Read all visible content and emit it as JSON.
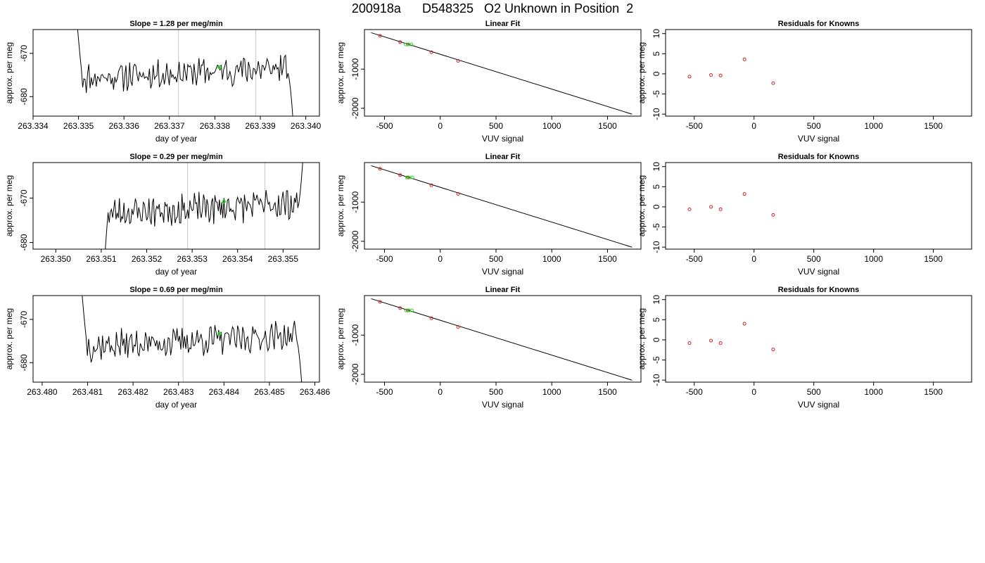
{
  "figure_title": "200918a      D548325   O2 Unknown in Position  2",
  "colors": {
    "trace": "#000000",
    "unknown_point": "#22dd22",
    "known_point": "#cc2222",
    "marker_line": "#c8c8c8",
    "axis": "#000000"
  },
  "chart_data": [
    {
      "panel": "r1-time",
      "type": "line",
      "title": "Slope =  1.28  per meg/min",
      "xlabel": "day of year",
      "ylabel": "approx. per meg",
      "xlim": [
        263.334,
        263.3403
      ],
      "ylim": [
        -684.5,
        -664.5
      ],
      "xticks": [
        263.334,
        263.335,
        263.336,
        263.337,
        263.338,
        263.339,
        263.34
      ],
      "xtick_labels": [
        "263.334",
        "263.335",
        "263.336",
        "263.337",
        "263.338",
        "263.339",
        "263.340"
      ],
      "yticks": [
        -670,
        -680
      ],
      "ytick_labels": [
        "-670",
        "-680"
      ],
      "vlines": [
        263.3372,
        263.3389
      ],
      "trace": {
        "x_start": 263.3349,
        "x_end": 263.3398,
        "base": -674.5,
        "offset": 1.3,
        "start_top": -650,
        "end_bottom": -700,
        "seed": 11
      },
      "unknown_point": {
        "x": 263.3381,
        "y": -673.2
      }
    },
    {
      "panel": "r1-fit",
      "type": "scatter",
      "title": "Linear Fit",
      "xlabel": "VUV signal",
      "ylabel": "approx. per meg",
      "xlim": [
        -680,
        1800
      ],
      "ylim": [
        -2200,
        10
      ],
      "xticks": [
        -500,
        0,
        500,
        1000,
        1500
      ],
      "xtick_labels": [
        "-500",
        "0",
        "500",
        "1000",
        "1500"
      ],
      "yticks": [
        -1000,
        -2000
      ],
      "ytick_labels": [
        "-1000",
        "-2000"
      ],
      "line": {
        "x": [
          -620,
          1720
        ],
        "y": [
          -70,
          -2150
        ]
      },
      "knowns": {
        "x": [
          -540,
          -360,
          -290,
          -80,
          160
        ],
        "y": [
          -150,
          -310,
          -370,
          -570,
          -790
        ]
      },
      "unknown_point": {
        "x": -285,
        "y": -370
      }
    },
    {
      "panel": "r1-res",
      "type": "scatter",
      "title": "Residuals for Knowns",
      "xlabel": "VUV signal",
      "ylabel": "approx. per meg",
      "xlim": [
        -740,
        1820
      ],
      "ylim": [
        -10.5,
        11
      ],
      "xticks": [
        -500,
        0,
        500,
        1000,
        1500
      ],
      "xtick_labels": [
        "-500",
        "0",
        "500",
        "1000",
        "1500"
      ],
      "yticks": [
        10,
        5,
        0,
        -5,
        -10
      ],
      "ytick_labels": [
        "10",
        "5",
        "0",
        "-5",
        "-10"
      ],
      "knowns": {
        "x": [
          -540,
          -360,
          -280,
          -80,
          160
        ],
        "y": [
          -0.7,
          -0.3,
          -0.4,
          3.6,
          -2.3
        ]
      }
    },
    {
      "panel": "r2-time",
      "type": "line",
      "title": "Slope =  0.29  per meg/min",
      "xlabel": "day of year",
      "ylabel": "approx. per meg",
      "xlim": [
        263.3495,
        263.3558
      ],
      "ylim": [
        -681.5,
        -662
      ],
      "xticks": [
        263.35,
        263.351,
        263.352,
        263.353,
        263.354,
        263.355
      ],
      "xtick_labels": [
        "263.350",
        "263.351",
        "263.352",
        "263.353",
        "263.354",
        "263.355"
      ],
      "yticks": [
        -670,
        -680
      ],
      "ytick_labels": [
        "-670",
        "-680"
      ],
      "vlines": [
        263.3529,
        263.3546
      ],
      "trace": {
        "x_start": 263.351,
        "x_end": 263.3555,
        "base": -672.3,
        "offset": 1.2,
        "start_top": -700,
        "end_bottom": -650,
        "seed": 23
      },
      "unknown_point": {
        "x": 263.3537,
        "y": -670.8
      }
    },
    {
      "panel": "r2-fit",
      "type": "scatter",
      "title": "Linear Fit",
      "xlabel": "VUV signal",
      "ylabel": "approx. per meg",
      "xlim": [
        -680,
        1800
      ],
      "ylim": [
        -2200,
        10
      ],
      "xticks": [
        -500,
        0,
        500,
        1000,
        1500
      ],
      "xtick_labels": [
        "-500",
        "0",
        "500",
        "1000",
        "1500"
      ],
      "yticks": [
        -1000,
        -2000
      ],
      "ytick_labels": [
        "-1000",
        "-2000"
      ],
      "line": {
        "x": [
          -620,
          1720
        ],
        "y": [
          -70,
          -2150
        ]
      },
      "knowns": {
        "x": [
          -540,
          -360,
          -290,
          -80,
          160
        ],
        "y": [
          -150,
          -310,
          -370,
          -570,
          -790
        ]
      },
      "unknown_point": {
        "x": -275,
        "y": -370
      }
    },
    {
      "panel": "r2-res",
      "type": "scatter",
      "title": "Residuals for Knowns",
      "xlabel": "VUV signal",
      "ylabel": "approx. per meg",
      "xlim": [
        -740,
        1820
      ],
      "ylim": [
        -10.5,
        11
      ],
      "xticks": [
        -500,
        0,
        500,
        1000,
        1500
      ],
      "xtick_labels": [
        "-500",
        "0",
        "500",
        "1000",
        "1500"
      ],
      "yticks": [
        10,
        5,
        0,
        -5,
        -10
      ],
      "ytick_labels": [
        "10",
        "5",
        "0",
        "-5",
        "-10"
      ],
      "knowns": {
        "x": [
          -540,
          -360,
          -280,
          -80,
          160
        ],
        "y": [
          -0.6,
          0.0,
          -0.6,
          3.2,
          -2.0
        ]
      }
    },
    {
      "panel": "r3-time",
      "type": "line",
      "title": "Slope =  0.69  per meg/min",
      "xlabel": "day of year",
      "ylabel": "approx. per meg",
      "xlim": [
        263.4798,
        263.4861
      ],
      "ylim": [
        -684.5,
        -664.5
      ],
      "xticks": [
        263.48,
        263.481,
        263.482,
        263.483,
        263.484,
        263.485,
        263.486
      ],
      "xtick_labels": [
        "263.480",
        "263.481",
        "263.482",
        "263.483",
        "263.484",
        "263.485",
        "263.486"
      ],
      "yticks": [
        -670,
        -680
      ],
      "ytick_labels": [
        "-670",
        "-680"
      ],
      "vlines": [
        263.4831,
        263.4849
      ],
      "trace": {
        "x_start": 263.4808,
        "x_end": 263.4858,
        "base": -675.0,
        "offset": 1.4,
        "start_top": -650,
        "end_bottom": -700,
        "seed": 37
      },
      "unknown_point": {
        "x": 263.4839,
        "y": -673.3
      }
    },
    {
      "panel": "r3-fit",
      "type": "scatter",
      "title": "Linear Fit",
      "xlabel": "VUV signal",
      "ylabel": "approx. per meg",
      "xlim": [
        -680,
        1800
      ],
      "ylim": [
        -2200,
        10
      ],
      "xticks": [
        -500,
        0,
        500,
        1000,
        1500
      ],
      "xtick_labels": [
        "-500",
        "0",
        "500",
        "1000",
        "1500"
      ],
      "yticks": [
        -1000,
        -2000
      ],
      "ytick_labels": [
        "-1000",
        "-2000"
      ],
      "line": {
        "x": [
          -620,
          1720
        ],
        "y": [
          -70,
          -2150
        ]
      },
      "knowns": {
        "x": [
          -540,
          -360,
          -290,
          -80,
          160
        ],
        "y": [
          -150,
          -310,
          -370,
          -570,
          -790
        ]
      },
      "unknown_point": {
        "x": -280,
        "y": -370
      }
    },
    {
      "panel": "r3-res",
      "type": "scatter",
      "title": "Residuals for Knowns",
      "xlabel": "VUV signal",
      "ylabel": "approx. per meg",
      "xlim": [
        -740,
        1820
      ],
      "ylim": [
        -10.5,
        11
      ],
      "xticks": [
        -500,
        0,
        500,
        1000,
        1500
      ],
      "xtick_labels": [
        "-500",
        "0",
        "500",
        "1000",
        "1500"
      ],
      "yticks": [
        10,
        5,
        0,
        -5,
        -10
      ],
      "ytick_labels": [
        "10",
        "5",
        "0",
        "-5",
        "-10"
      ],
      "knowns": {
        "x": [
          -540,
          -360,
          -280,
          -80,
          160
        ],
        "y": [
          -0.8,
          -0.2,
          -0.8,
          4.0,
          -2.4
        ]
      }
    }
  ]
}
